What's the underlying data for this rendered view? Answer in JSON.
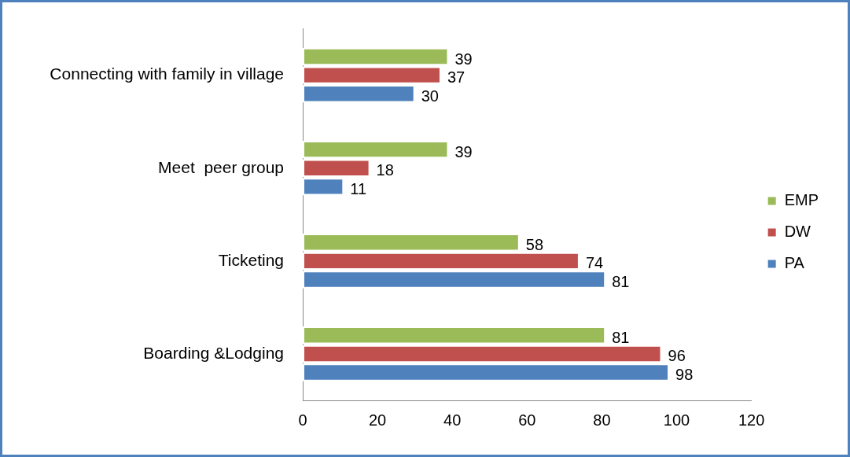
{
  "chart_data": {
    "type": "bar",
    "orientation": "horizontal",
    "categories": [
      "Connecting with family in village",
      "Meet  peer group",
      "Ticketing",
      "Boarding &Lodging"
    ],
    "series": [
      {
        "name": "EMP",
        "color": "#9bbb59",
        "values": [
          39,
          39,
          58,
          81
        ]
      },
      {
        "name": "DW",
        "color": "#c0504d",
        "values": [
          37,
          18,
          74,
          96
        ]
      },
      {
        "name": "PA",
        "color": "#4f81bd",
        "values": [
          30,
          11,
          81,
          98
        ]
      }
    ],
    "xlim": [
      0,
      120
    ],
    "xticks": [
      0,
      20,
      40,
      60,
      80,
      100,
      120
    ],
    "grid": false,
    "legend": "right",
    "data_labels": true
  }
}
